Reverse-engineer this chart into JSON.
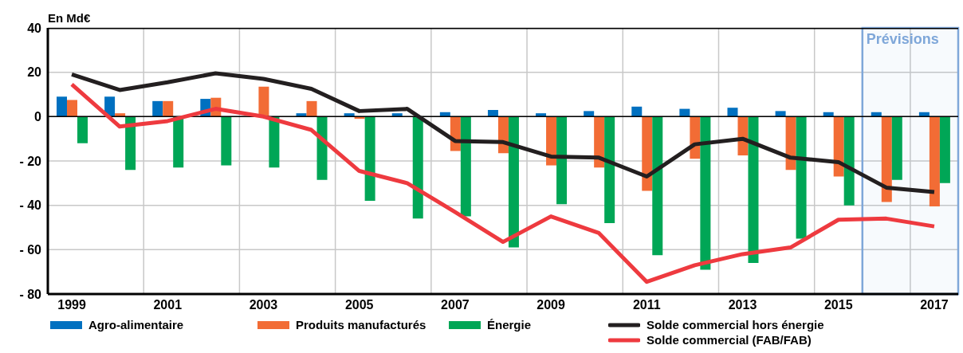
{
  "chart_data": {
    "type": "bar",
    "ylabel": "En Md€",
    "x": [
      1999,
      2000,
      2001,
      2002,
      2003,
      2004,
      2005,
      2006,
      2007,
      2008,
      2009,
      2010,
      2011,
      2012,
      2013,
      2014,
      2015,
      2016,
      2017
    ],
    "xlim": [
      1998.5,
      2017.5
    ],
    "xticks": [
      1999,
      {
        "value": 2000.5,
        "label": null
      },
      2001,
      {
        "value": 2002.5,
        "label": null
      },
      2003,
      {
        "value": 2004.5,
        "label": null
      },
      2005,
      {
        "value": 2006.5,
        "label": null
      },
      2007,
      {
        "value": 2008.5,
        "label": null
      },
      2009,
      {
        "value": 2010.5,
        "label": null
      },
      2011,
      {
        "value": 2012.5,
        "label": null
      },
      2013,
      {
        "value": 2014.5,
        "label": null
      },
      2015,
      {
        "value": 2016.5,
        "label": null
      },
      2017
    ],
    "ylim": [
      -80,
      40
    ],
    "yticks": [
      40,
      20,
      0,
      {
        "value": -20,
        "label": "- 20"
      },
      {
        "value": -40,
        "label": "- 40"
      },
      {
        "value": -60,
        "label": "- 60"
      },
      {
        "value": -80,
        "label": "- 80"
      }
    ],
    "grid": true,
    "legend": "bottom",
    "marker": "none",
    "line_style": "solid",
    "series": [
      {
        "name": "Agro-alimentaire",
        "color": "#0070c0",
        "values": [
          9,
          9,
          7,
          8,
          null,
          1.5,
          1.5,
          1.5,
          2,
          3,
          1.5,
          2.5,
          4.5,
          3.5,
          4,
          2.5,
          2,
          2,
          2
        ]
      },
      {
        "name": "Produits manufacturés",
        "color": "#f26c35",
        "values": [
          7.5,
          1.5,
          7,
          8.5,
          13.5,
          7,
          -1,
          0,
          -15.5,
          -16.5,
          -22,
          -23,
          -33.5,
          -19,
          -17.5,
          -24,
          -27,
          -38.5,
          -40.5
        ]
      },
      {
        "name": "Énergie",
        "color": "#00a656",
        "values": [
          -12,
          -24,
          -23,
          -22,
          -23,
          -28.5,
          -38,
          -46,
          -45,
          -59,
          -39.5,
          -48,
          -62.5,
          -69,
          -66,
          -55,
          -40,
          -28.5,
          -30
        ]
      },
      {
        "type": "line",
        "name": "Solde commercial hors énergie",
        "color": "#231f20",
        "values": [
          19,
          12,
          15.5,
          19.5,
          17,
          12.5,
          2.5,
          3.5,
          -11,
          -11.5,
          -18,
          -18.5,
          -27,
          -12.5,
          -10,
          -18.5,
          -20.5,
          -32,
          -34
        ]
      },
      {
        "type": "line",
        "name": "Solde commercial (FAB/FAB)",
        "color": "#ee3a3f",
        "values": [
          14.5,
          -4.5,
          -2,
          3.5,
          0,
          -6,
          -24.5,
          -30,
          -43,
          -56.5,
          -45,
          -52.5,
          -74.5,
          -67,
          -62,
          -59,
          -46.5,
          -46,
          -49.5
        ]
      }
    ],
    "ref_lines": [
      {
        "axis": "y",
        "value": 0,
        "color": "#000000"
      }
    ],
    "bands": [
      {
        "axis": "x",
        "from": 2015.5,
        "to": 2017.5,
        "label": "Prévisions",
        "color": "#7fa7d9"
      }
    ]
  }
}
